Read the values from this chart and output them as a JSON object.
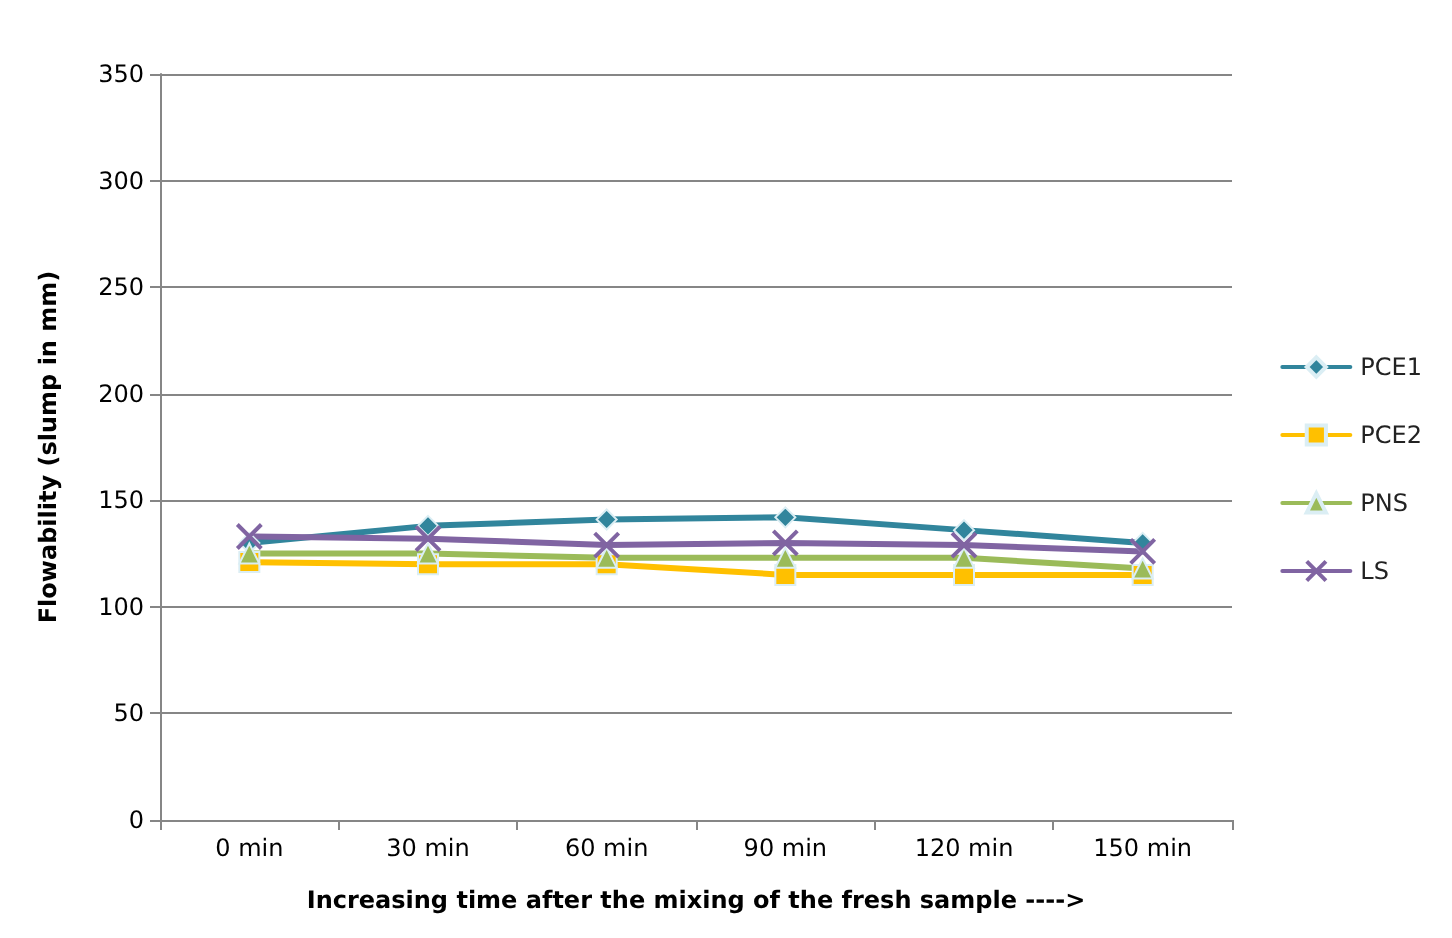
{
  "chart_data": {
    "type": "line",
    "xlabel": "Increasing time after the mixing of the fresh sample ---->",
    "ylabel": "Flowability (slump in mm)",
    "categories": [
      "0 min",
      "30 min",
      "60 min",
      "90 min",
      "120 min",
      "150 min"
    ],
    "series": [
      {
        "name": "PCE1",
        "color": "#31859c",
        "marker": "diamond",
        "values": [
          130,
          138,
          141,
          142,
          136,
          130
        ]
      },
      {
        "name": "PCE2",
        "color": "#ffc000",
        "marker": "square",
        "values": [
          121,
          120,
          120,
          115,
          115,
          115
        ]
      },
      {
        "name": "PNS",
        "color": "#9bbb59",
        "marker": "triangle",
        "values": [
          125,
          125,
          123,
          123,
          123,
          118
        ]
      },
      {
        "name": "LS",
        "color": "#8064a2",
        "marker": "cross",
        "values": [
          133,
          132,
          129,
          130,
          129,
          126
        ]
      }
    ],
    "ylim": [
      0,
      350
    ],
    "yticks": [
      0,
      50,
      100,
      150,
      200,
      250,
      300,
      350
    ],
    "grid": "y",
    "legend": "right"
  }
}
